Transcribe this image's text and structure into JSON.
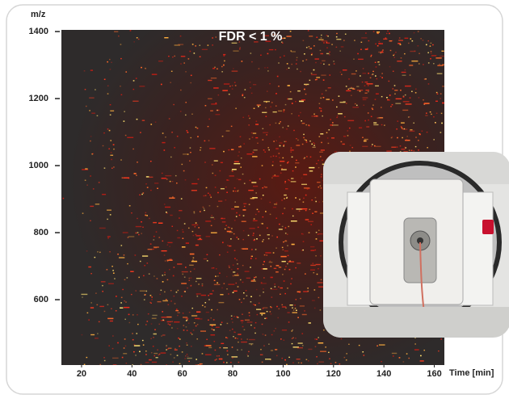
{
  "chart_data": {
    "type": "heatmap",
    "title": "FDR < 1 %",
    "y_label": "m/z",
    "x_label": "Time [min]",
    "xlim": [
      12,
      164
    ],
    "xticks": [
      20,
      40,
      60,
      80,
      100,
      120,
      140,
      160
    ],
    "ylim": [
      405,
      1405
    ],
    "yticks": [
      600,
      800,
      1000,
      1200,
      1400
    ]
  }
}
